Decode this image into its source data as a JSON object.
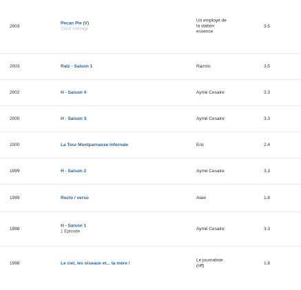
{
  "rows": [
    {
      "year": "2003",
      "title": "Pecan Pie (V)",
      "subtitle": "Court métrage",
      "role_lines": [
        "Un employé de",
        "la station",
        "essence"
      ],
      "note": "3.5"
    },
    {
      "year": "2003",
      "title": "Ratz - Saison 1",
      "role_lines": [
        "Razmo"
      ],
      "note": "3.5"
    },
    {
      "year": "2002",
      "title": "H - Saison 4",
      "role_lines": [
        "Aymé Cesaire"
      ],
      "note": "3.3"
    },
    {
      "year": "2000",
      "title": "H - Saison 3",
      "role_lines": [
        "Aymé Cesaire"
      ],
      "note": "3.3"
    },
    {
      "year": "2000",
      "title": "La Tour Montparnasse infernale",
      "role_lines": [
        "Eric"
      ],
      "note": "2.4"
    },
    {
      "year": "1999",
      "title": "H - Saison 2",
      "role_lines": [
        "Aymé Cesaire"
      ],
      "note": "3.3"
    },
    {
      "year": "1999",
      "title": "Recto / verso",
      "role_lines": [
        "Alain"
      ],
      "note": "1.8"
    },
    {
      "year": "1998",
      "title": "H - Saison 1",
      "subtitle": "1 Episode",
      "role_lines": [
        "Aymé Cesaire"
      ],
      "note": "3.3"
    },
    {
      "year": "1998",
      "title": "Le ciel, les oiseaux et... ta mère !",
      "role_lines": [
        "Le journaliste",
        "(off)"
      ],
      "note": "1.8"
    }
  ]
}
